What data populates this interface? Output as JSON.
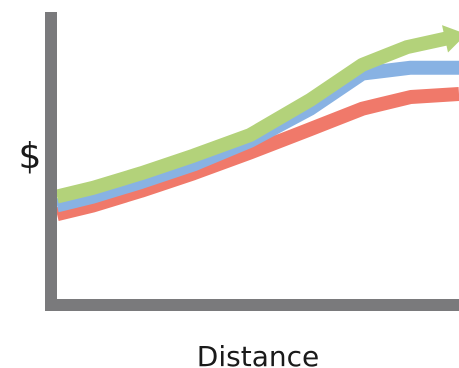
{
  "chart_data": {
    "type": "line",
    "title": "",
    "xlabel": "Distance",
    "ylabel": "$",
    "ticks": "none",
    "grid": false,
    "legend": "none",
    "series": [
      {
        "color": "#f0796a",
        "points": [
          [
            0,
            0.31
          ],
          [
            0.09,
            0.34
          ],
          [
            0.21,
            0.39
          ],
          [
            0.34,
            0.45
          ],
          [
            0.48,
            0.52
          ],
          [
            0.63,
            0.6
          ],
          [
            0.76,
            0.67
          ],
          [
            0.88,
            0.71
          ],
          [
            1.0,
            0.72
          ]
        ]
      },
      {
        "color": "#88b2e3",
        "points": [
          [
            0,
            0.34
          ],
          [
            0.09,
            0.37
          ],
          [
            0.21,
            0.42
          ],
          [
            0.34,
            0.48
          ],
          [
            0.48,
            0.56
          ],
          [
            0.63,
            0.67
          ],
          [
            0.76,
            0.79
          ],
          [
            0.88,
            0.81
          ],
          [
            1.0,
            0.81
          ]
        ]
      },
      {
        "color": "#b3d27a",
        "arrow": true,
        "points": [
          [
            0,
            0.37
          ],
          [
            0.09,
            0.4
          ],
          [
            0.21,
            0.45
          ],
          [
            0.34,
            0.51
          ],
          [
            0.48,
            0.58
          ],
          [
            0.63,
            0.7
          ],
          [
            0.76,
            0.82
          ],
          [
            0.87,
            0.88
          ],
          [
            0.97,
            0.91
          ]
        ]
      }
    ],
    "xlim": [
      0,
      1
    ],
    "ylim": [
      0,
      1
    ],
    "axis_color": "#7a7a7c"
  }
}
